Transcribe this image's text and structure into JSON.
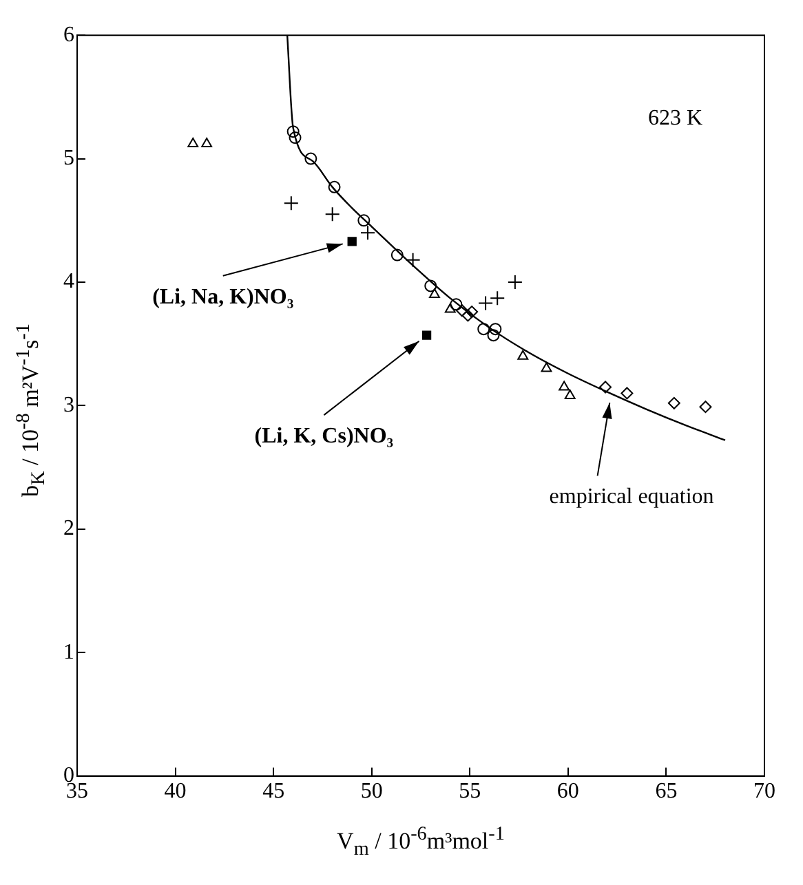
{
  "chart_data": {
    "type": "scatter",
    "xlabel": "V$_{m}$ / 10$^{-6}$m³mol$^{-1}$",
    "ylabel": "b$_{K}$ / 10$^{-8}$ m²V$^{-1}$s$^{-1}$",
    "xlim": [
      35,
      70
    ],
    "xticks": [
      35,
      40,
      45,
      50,
      55,
      60,
      65,
      70
    ],
    "ylim": [
      0,
      6
    ],
    "yticks": [
      0,
      1,
      2,
      3,
      4,
      5,
      6
    ],
    "grid": false,
    "legend": false,
    "annotations": [
      "623 K",
      {
        "text": "(Li, Na, K)NO₃",
        "x": 49.0,
        "y": 4.33
      },
      {
        "text": "(Li, K, Cs)NO₃",
        "x": 52.8,
        "y": 3.57
      },
      {
        "text": "empirical equation",
        "x": 62.2,
        "y": 3.1
      }
    ],
    "series": [
      {
        "type": "line",
        "marker": "none",
        "color": "#000000",
        "x": [
          45.7,
          46,
          47,
          48,
          49,
          50,
          52,
          54,
          56,
          58,
          60,
          62,
          64,
          66,
          68
        ],
        "values": [
          6.0,
          5.25,
          4.98,
          4.77,
          4.6,
          4.45,
          4.15,
          3.87,
          3.63,
          3.43,
          3.26,
          3.11,
          2.97,
          2.84,
          2.72
        ]
      },
      {
        "marker": "circle",
        "color": "#000000",
        "x": [
          46.0,
          46.1,
          46.9,
          48.1,
          49.6,
          51.3,
          53.0,
          55.7,
          56.2,
          56.3,
          54.3
        ],
        "values": [
          5.22,
          5.17,
          5.0,
          4.77,
          4.5,
          4.22,
          3.97,
          3.62,
          3.57,
          3.62,
          3.82
        ]
      },
      {
        "marker": "triangle",
        "color": "#000000",
        "x": [
          40.9,
          41.6,
          53.2,
          57.7,
          58.9,
          59.8,
          60.1,
          54.0
        ],
        "values": [
          5.12,
          5.12,
          3.9,
          3.4,
          3.3,
          3.15,
          3.08,
          3.78
        ]
      },
      {
        "marker": "cross",
        "color": "#000000",
        "x": [
          45.9,
          48.0,
          49.8,
          52.1,
          55.8,
          56.4,
          57.3
        ],
        "values": [
          4.64,
          4.55,
          4.4,
          4.18,
          3.83,
          3.87,
          4.0
        ]
      },
      {
        "marker": "diamond",
        "color": "#000000",
        "x": [
          54.6,
          54.9,
          55.1,
          61.9,
          63.0,
          65.4,
          67.0
        ],
        "values": [
          3.77,
          3.73,
          3.76,
          3.15,
          3.1,
          3.02,
          2.99
        ]
      },
      {
        "marker": "square",
        "color": "#000000",
        "x": [
          49.0,
          52.8
        ],
        "values": [
          4.33,
          3.57
        ]
      }
    ]
  }
}
